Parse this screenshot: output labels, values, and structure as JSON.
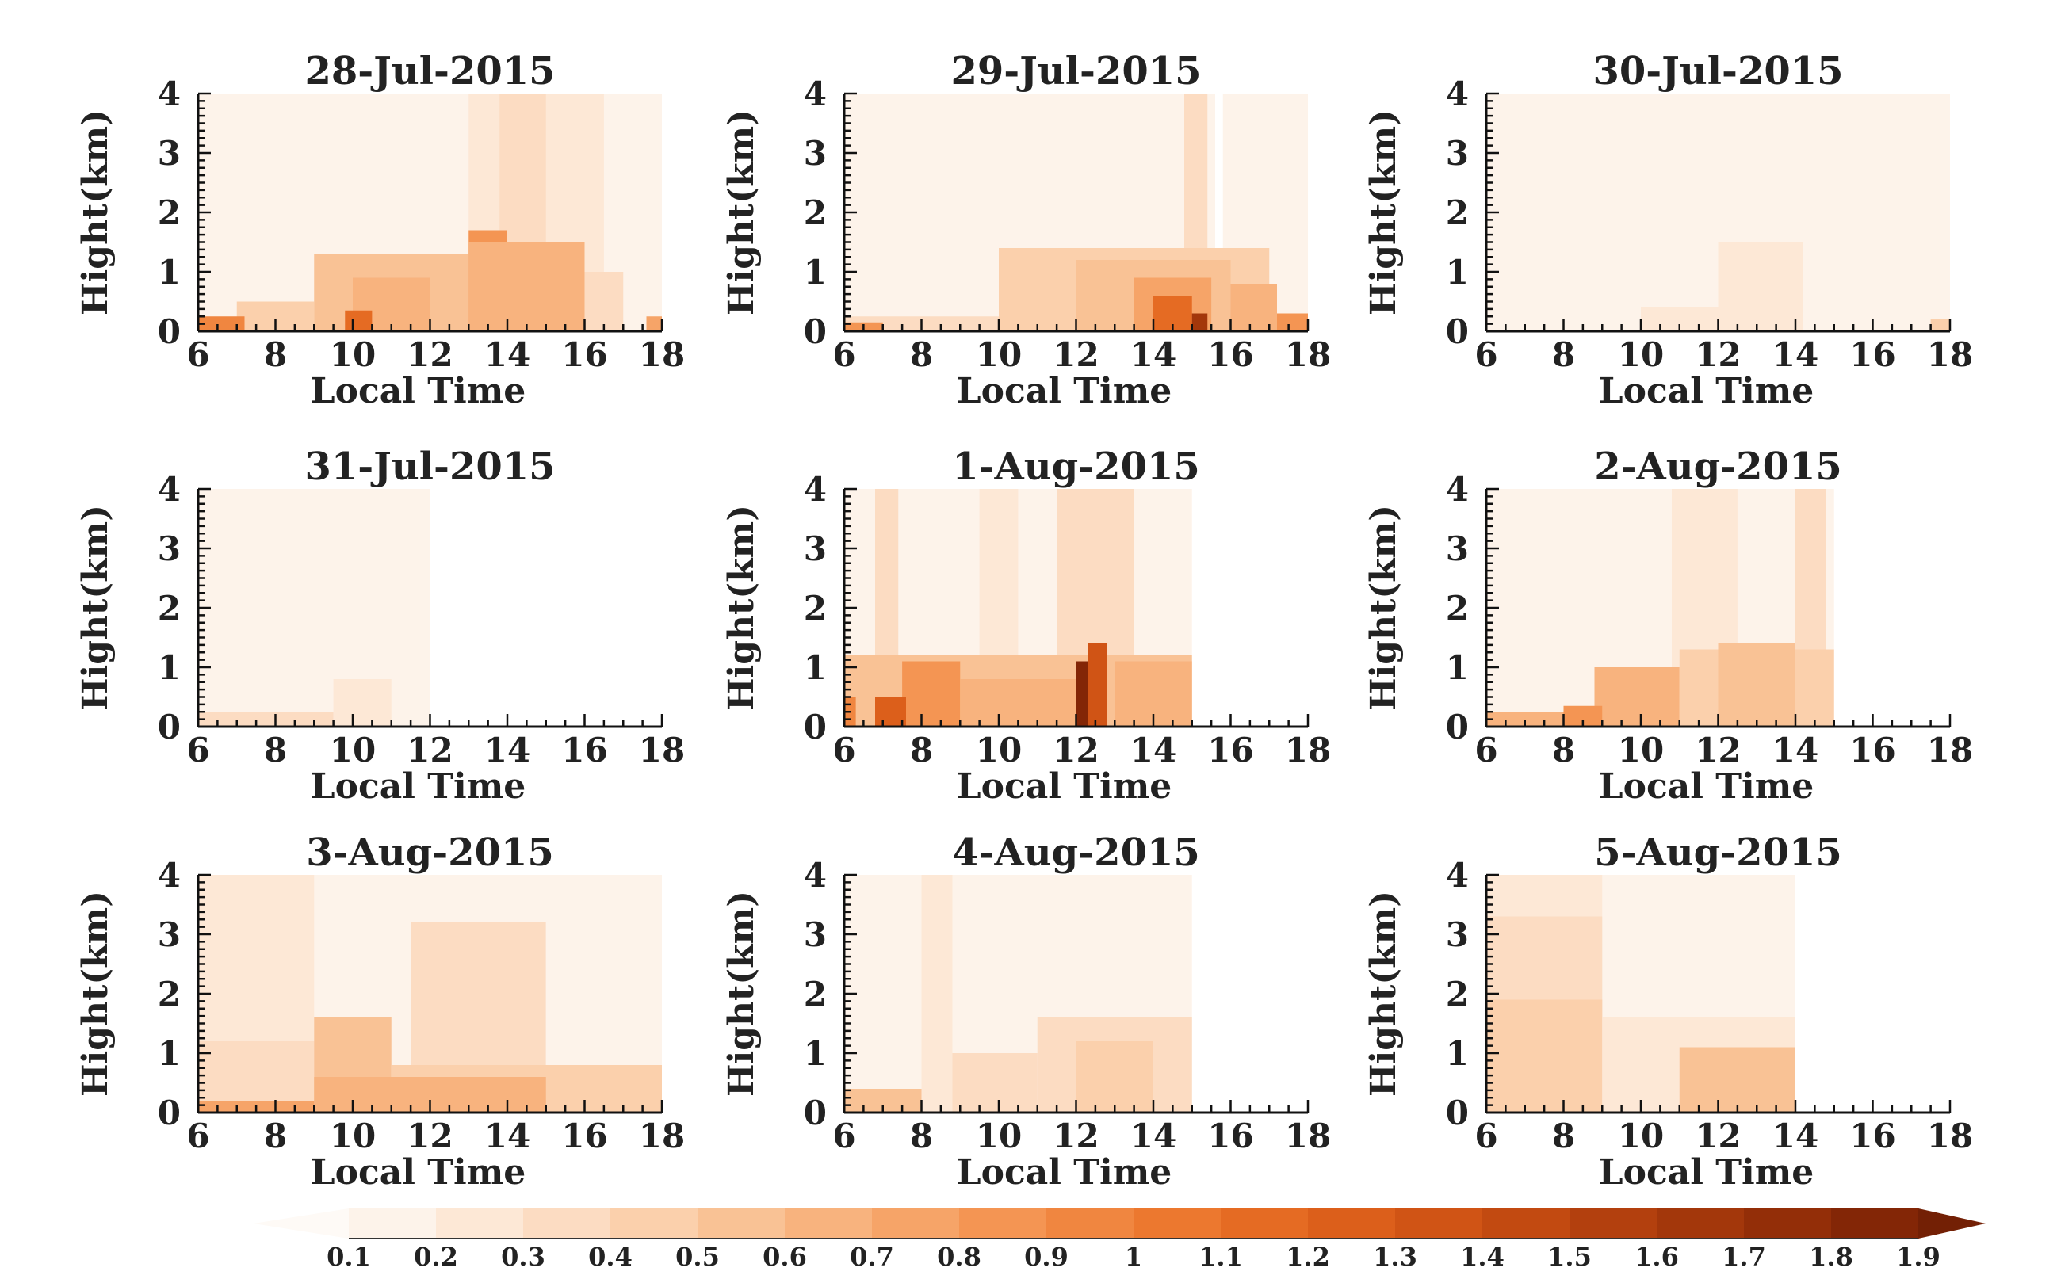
{
  "chart_data": {
    "type": "heatmap",
    "xlabel": "Local Time",
    "ylabel": "Hight(km)",
    "xlim": [
      6,
      18
    ],
    "ylim": [
      0,
      4
    ],
    "x_ticks": [
      "6",
      "8",
      "10",
      "12",
      "14",
      "16",
      "18"
    ],
    "y_ticks": [
      "0",
      "1",
      "2",
      "3",
      "4"
    ],
    "colorbar": {
      "levels": [
        "0.1",
        "0.2",
        "0.3",
        "0.4",
        "0.5",
        "0.6",
        "0.7",
        "0.8",
        "0.9",
        "1",
        "1.1",
        "1.2",
        "1.3",
        "1.4",
        "1.5",
        "1.6",
        "1.7",
        "1.8",
        "1.9"
      ],
      "colors": [
        "#fdf3ea",
        "#fde8d6",
        "#fcdcc2",
        "#fbd0ac",
        "#f9c295",
        "#f8b37e",
        "#f6a468",
        "#f49553",
        "#f08640",
        "#ec782f",
        "#e56b23",
        "#dc5f1b",
        "#d05415",
        "#c24a11",
        "#b3400e",
        "#a3370b",
        "#932e08",
        "#832606",
        "#732005"
      ]
    },
    "panels": [
      {
        "title": "28-Jul-2015",
        "data_end": 18,
        "bg": 0.1,
        "blocks": [
          [
            9.3,
            10.2,
            0,
            4,
            0.1
          ],
          [
            10.6,
            12.2,
            0,
            4,
            0.1
          ],
          [
            13,
            16.5,
            0,
            4,
            0.2
          ],
          [
            13.8,
            15,
            0,
            4,
            0.3
          ],
          [
            7,
            9,
            0,
            0.5,
            0.4
          ],
          [
            9,
            13,
            0,
            1.3,
            0.5
          ],
          [
            10,
            12,
            0,
            0.9,
            0.6
          ],
          [
            13,
            14,
            0,
            1.7,
            0.8
          ],
          [
            13,
            16,
            0,
            1.5,
            0.6
          ],
          [
            16,
            17,
            0,
            1,
            0.3
          ],
          [
            6,
            7.2,
            0,
            0.25,
            0.9
          ],
          [
            9.8,
            10.5,
            0,
            0.35,
            1.1
          ],
          [
            17.6,
            18,
            0,
            0.25,
            0.7
          ]
        ]
      },
      {
        "title": "29-Jul-2015",
        "data_end": 18,
        "bg": 0.1,
        "blocks": [
          [
            12,
            16.5,
            0,
            4,
            0.1
          ],
          [
            14.8,
            15.4,
            0,
            4,
            0.3
          ],
          [
            15.6,
            15.8,
            0,
            4,
            0
          ],
          [
            10,
            17,
            0,
            1.4,
            0.4
          ],
          [
            12,
            16,
            0,
            1.2,
            0.5
          ],
          [
            13.5,
            15.5,
            0,
            0.9,
            0.7
          ],
          [
            14,
            15,
            0,
            0.6,
            1.1
          ],
          [
            15,
            15.4,
            0,
            0.3,
            1.6
          ],
          [
            16,
            17.2,
            0,
            0.8,
            0.6
          ],
          [
            17.2,
            18,
            0,
            0.3,
            0.8
          ],
          [
            6,
            10,
            0,
            0.25,
            0.3
          ],
          [
            6,
            7,
            0,
            0.15,
            0.8
          ]
        ]
      },
      {
        "title": "30-Jul-2015",
        "data_end": 18,
        "bg": 0.1,
        "blocks": [
          [
            10,
            12,
            0,
            0.4,
            0.2
          ],
          [
            12,
            14.2,
            0,
            1.5,
            0.2
          ],
          [
            14.2,
            17,
            0,
            1.1,
            0.15
          ],
          [
            17.5,
            18,
            0,
            0.2,
            0.4
          ]
        ]
      },
      {
        "title": "31-Jul-2015",
        "data_end": 12,
        "bg": 0.1,
        "blocks": [
          [
            6,
            9.5,
            0,
            0.25,
            0.3
          ],
          [
            9.5,
            12,
            0,
            0.8,
            0.2
          ],
          [
            11,
            12,
            0,
            1.6,
            0.15
          ]
        ]
      },
      {
        "title": "1-Aug-2015",
        "data_end": 15,
        "bg": 0.15,
        "blocks": [
          [
            6.8,
            7.4,
            0,
            4,
            0.3
          ],
          [
            9.5,
            10.5,
            0,
            4,
            0.25
          ],
          [
            11.5,
            13.5,
            0,
            4,
            0.3
          ],
          [
            6,
            15,
            0,
            1.2,
            0.5
          ],
          [
            7.5,
            9,
            0,
            1.1,
            0.8
          ],
          [
            6.8,
            7.6,
            0,
            0.5,
            1.2
          ],
          [
            9,
            12,
            0,
            0.8,
            0.6
          ],
          [
            12,
            12.3,
            0,
            1.1,
            1.8
          ],
          [
            12.3,
            12.8,
            0,
            1.4,
            1.3
          ],
          [
            13,
            15,
            0,
            1.1,
            0.6
          ],
          [
            6,
            6.3,
            0,
            0.5,
            0.9
          ]
        ]
      },
      {
        "title": "2-Aug-2015",
        "data_end": 15,
        "bg": 0.1,
        "blocks": [
          [
            10.8,
            12.5,
            0,
            4,
            0.2
          ],
          [
            14,
            14.8,
            0,
            4,
            0.3
          ],
          [
            8.8,
            11,
            0,
            1,
            0.6
          ],
          [
            11,
            15,
            0,
            1.3,
            0.45
          ],
          [
            12,
            14,
            0,
            1.4,
            0.55
          ],
          [
            6,
            8,
            0,
            0.25,
            0.6
          ],
          [
            8,
            9,
            0,
            0.35,
            0.8
          ]
        ]
      },
      {
        "title": "3-Aug-2015",
        "data_end": 18,
        "bg": 0.2,
        "blocks": [
          [
            6,
            9,
            0,
            4,
            0.25
          ],
          [
            9,
            18,
            0,
            4,
            0.15
          ],
          [
            11.5,
            15,
            0,
            3.2,
            0.3
          ],
          [
            15,
            18,
            0,
            4,
            0.1
          ],
          [
            6,
            9,
            0,
            1.2,
            0.35
          ],
          [
            9,
            11,
            0,
            1.6,
            0.5
          ],
          [
            11,
            18,
            0,
            0.8,
            0.4
          ],
          [
            9,
            15,
            0,
            0.6,
            0.6
          ],
          [
            6,
            9,
            0,
            0.2,
            0.7
          ]
        ]
      },
      {
        "title": "4-Aug-2015",
        "data_end": 15,
        "bg": 0.1,
        "blocks": [
          [
            8,
            8.8,
            0,
            4,
            0.2
          ],
          [
            6,
            8,
            0,
            0.4,
            0.5
          ],
          [
            8.8,
            11,
            0,
            1,
            0.3
          ],
          [
            11,
            15,
            0,
            1.6,
            0.35
          ],
          [
            12,
            14,
            0,
            1.2,
            0.45
          ]
        ]
      },
      {
        "title": "5-Aug-2015",
        "data_end": 14,
        "bg": 0.1,
        "blocks": [
          [
            6,
            9,
            0,
            4,
            0.25
          ],
          [
            6,
            9,
            0,
            3.3,
            0.35
          ],
          [
            6,
            9,
            0,
            1.9,
            0.45
          ],
          [
            9,
            14,
            0,
            1.6,
            0.25
          ],
          [
            11,
            14,
            0,
            1.1,
            0.5
          ]
        ]
      }
    ]
  }
}
